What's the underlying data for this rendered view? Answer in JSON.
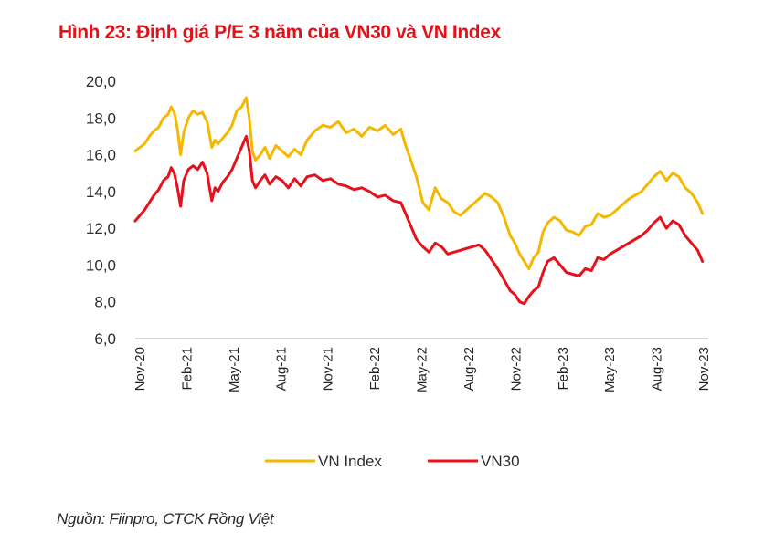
{
  "title": "Hình 23: Định giá P/E 3 năm của VN30 và VN Index",
  "source": "Nguồn: Fiinpro, CTCK Rồng Việt",
  "chart_data": {
    "type": "line",
    "title": "Hình 23: Định giá P/E 3 năm của VN30 và VN Index",
    "xlabel": "",
    "ylabel": "",
    "ylim": [
      6.0,
      20.0
    ],
    "yticks": [
      "20,0",
      "18,0",
      "16,0",
      "14,0",
      "12,0",
      "10,0",
      "8,0",
      "6,0"
    ],
    "ytick_values": [
      20,
      18,
      16,
      14,
      12,
      10,
      8,
      6
    ],
    "xticks": [
      "Nov-20",
      "Feb-21",
      "May-21",
      "Aug-21",
      "Nov-21",
      "Feb-22",
      "May-22",
      "Aug-22",
      "Nov-22",
      "Feb-23",
      "May-23",
      "Aug-23",
      "Nov-23"
    ],
    "xlim_months": [
      0,
      36.5
    ],
    "grid": false,
    "legend_position": "bottom",
    "colors": {
      "vn_index": "#f5b800",
      "vn30": "#e8101a"
    },
    "series": [
      {
        "name": "VN Index",
        "color": "#f5b800",
        "x_months": [
          0,
          0.3,
          0.6,
          0.9,
          1.2,
          1.5,
          1.8,
          2.1,
          2.3,
          2.5,
          2.7,
          2.9,
          3.1,
          3.4,
          3.7,
          4.0,
          4.3,
          4.6,
          4.9,
          5.1,
          5.3,
          5.6,
          5.9,
          6.2,
          6.5,
          6.8,
          7.1,
          7.3,
          7.5,
          7.7,
          8.0,
          8.3,
          8.6,
          9.0,
          9.4,
          9.8,
          10.2,
          10.6,
          11.0,
          11.5,
          12.0,
          12.5,
          13.0,
          13.5,
          14.0,
          14.5,
          15.0,
          15.5,
          16.0,
          16.5,
          17.0,
          17.3,
          17.6,
          18.0,
          18.4,
          18.8,
          19.2,
          19.6,
          20.0,
          20.4,
          20.8,
          21.2,
          21.6,
          22.0,
          22.4,
          22.8,
          23.2,
          23.6,
          24.0,
          24.3,
          24.6,
          24.9,
          25.2,
          25.5,
          25.8,
          26.1,
          26.4,
          26.8,
          27.2,
          27.6,
          28.0,
          28.4,
          28.8,
          29.2,
          29.6,
          30.0,
          30.4,
          30.8,
          31.2,
          31.6,
          32.0,
          32.4,
          32.8,
          33.2,
          33.6,
          34.0,
          34.4,
          34.8,
          35.2,
          35.6,
          36.0,
          36.3
        ],
        "values": [
          16.2,
          16.4,
          16.6,
          17.0,
          17.3,
          17.5,
          18.0,
          18.2,
          18.6,
          18.3,
          17.4,
          16.0,
          17.2,
          18.0,
          18.4,
          18.2,
          18.3,
          17.8,
          16.4,
          16.8,
          16.6,
          16.9,
          17.2,
          17.6,
          18.4,
          18.6,
          19.1,
          18.0,
          16.2,
          15.7,
          16.0,
          16.4,
          15.8,
          16.5,
          16.2,
          15.9,
          16.3,
          16.0,
          16.8,
          17.3,
          17.6,
          17.5,
          17.8,
          17.2,
          17.4,
          17.0,
          17.5,
          17.3,
          17.6,
          17.1,
          17.4,
          16.5,
          15.8,
          14.8,
          13.4,
          13.0,
          14.2,
          13.6,
          13.4,
          12.9,
          12.7,
          13.0,
          13.3,
          13.6,
          13.9,
          13.7,
          13.4,
          12.6,
          11.6,
          11.2,
          10.6,
          10.2,
          9.8,
          10.4,
          10.7,
          11.8,
          12.3,
          12.6,
          12.4,
          11.9,
          11.8,
          11.6,
          12.1,
          12.2,
          12.8,
          12.6,
          12.7,
          13.0,
          13.3,
          13.6,
          13.8,
          14.0,
          14.4,
          14.8,
          15.1,
          14.6,
          15.0,
          14.8,
          14.2,
          13.9,
          13.4,
          12.8
        ]
      },
      {
        "name": "VN30",
        "color": "#e8101a",
        "x_months": [
          0,
          0.3,
          0.6,
          0.9,
          1.2,
          1.5,
          1.8,
          2.1,
          2.3,
          2.5,
          2.7,
          2.9,
          3.1,
          3.4,
          3.7,
          4.0,
          4.3,
          4.6,
          4.9,
          5.1,
          5.3,
          5.6,
          5.9,
          6.2,
          6.5,
          6.8,
          7.1,
          7.3,
          7.5,
          7.7,
          8.0,
          8.3,
          8.6,
          9.0,
          9.4,
          9.8,
          10.2,
          10.6,
          11.0,
          11.5,
          12.0,
          12.5,
          13.0,
          13.5,
          14.0,
          14.5,
          15.0,
          15.5,
          16.0,
          16.5,
          17.0,
          17.3,
          17.6,
          18.0,
          18.4,
          18.8,
          19.2,
          19.6,
          20.0,
          20.4,
          20.8,
          21.2,
          21.6,
          22.0,
          22.4,
          22.8,
          23.2,
          23.6,
          24.0,
          24.3,
          24.6,
          24.9,
          25.2,
          25.5,
          25.8,
          26.1,
          26.4,
          26.8,
          27.2,
          27.6,
          28.0,
          28.4,
          28.8,
          29.2,
          29.6,
          30.0,
          30.4,
          30.8,
          31.2,
          31.6,
          32.0,
          32.4,
          32.8,
          33.2,
          33.6,
          34.0,
          34.4,
          34.8,
          35.2,
          35.6,
          36.0,
          36.3
        ],
        "values": [
          12.4,
          12.7,
          13.0,
          13.4,
          13.8,
          14.1,
          14.6,
          14.8,
          15.3,
          15.0,
          14.2,
          13.2,
          14.6,
          15.2,
          15.4,
          15.2,
          15.6,
          15.0,
          13.5,
          14.2,
          14.0,
          14.5,
          14.8,
          15.2,
          15.8,
          16.4,
          17.0,
          16.2,
          14.6,
          14.2,
          14.6,
          14.9,
          14.4,
          14.8,
          14.6,
          14.2,
          14.7,
          14.3,
          14.8,
          14.9,
          14.6,
          14.7,
          14.4,
          14.3,
          14.1,
          14.2,
          14.0,
          13.7,
          13.8,
          13.5,
          13.4,
          12.8,
          12.2,
          11.4,
          11.0,
          10.7,
          11.2,
          11.0,
          10.6,
          10.7,
          10.8,
          10.9,
          11.0,
          11.1,
          10.8,
          10.3,
          9.8,
          9.2,
          8.6,
          8.4,
          8.0,
          7.9,
          8.3,
          8.6,
          8.8,
          9.6,
          10.2,
          10.4,
          10.0,
          9.6,
          9.5,
          9.4,
          9.8,
          9.7,
          10.4,
          10.3,
          10.6,
          10.8,
          11.0,
          11.2,
          11.4,
          11.6,
          11.9,
          12.3,
          12.6,
          12.0,
          12.4,
          12.2,
          11.6,
          11.2,
          10.8,
          10.2
        ]
      }
    ]
  }
}
